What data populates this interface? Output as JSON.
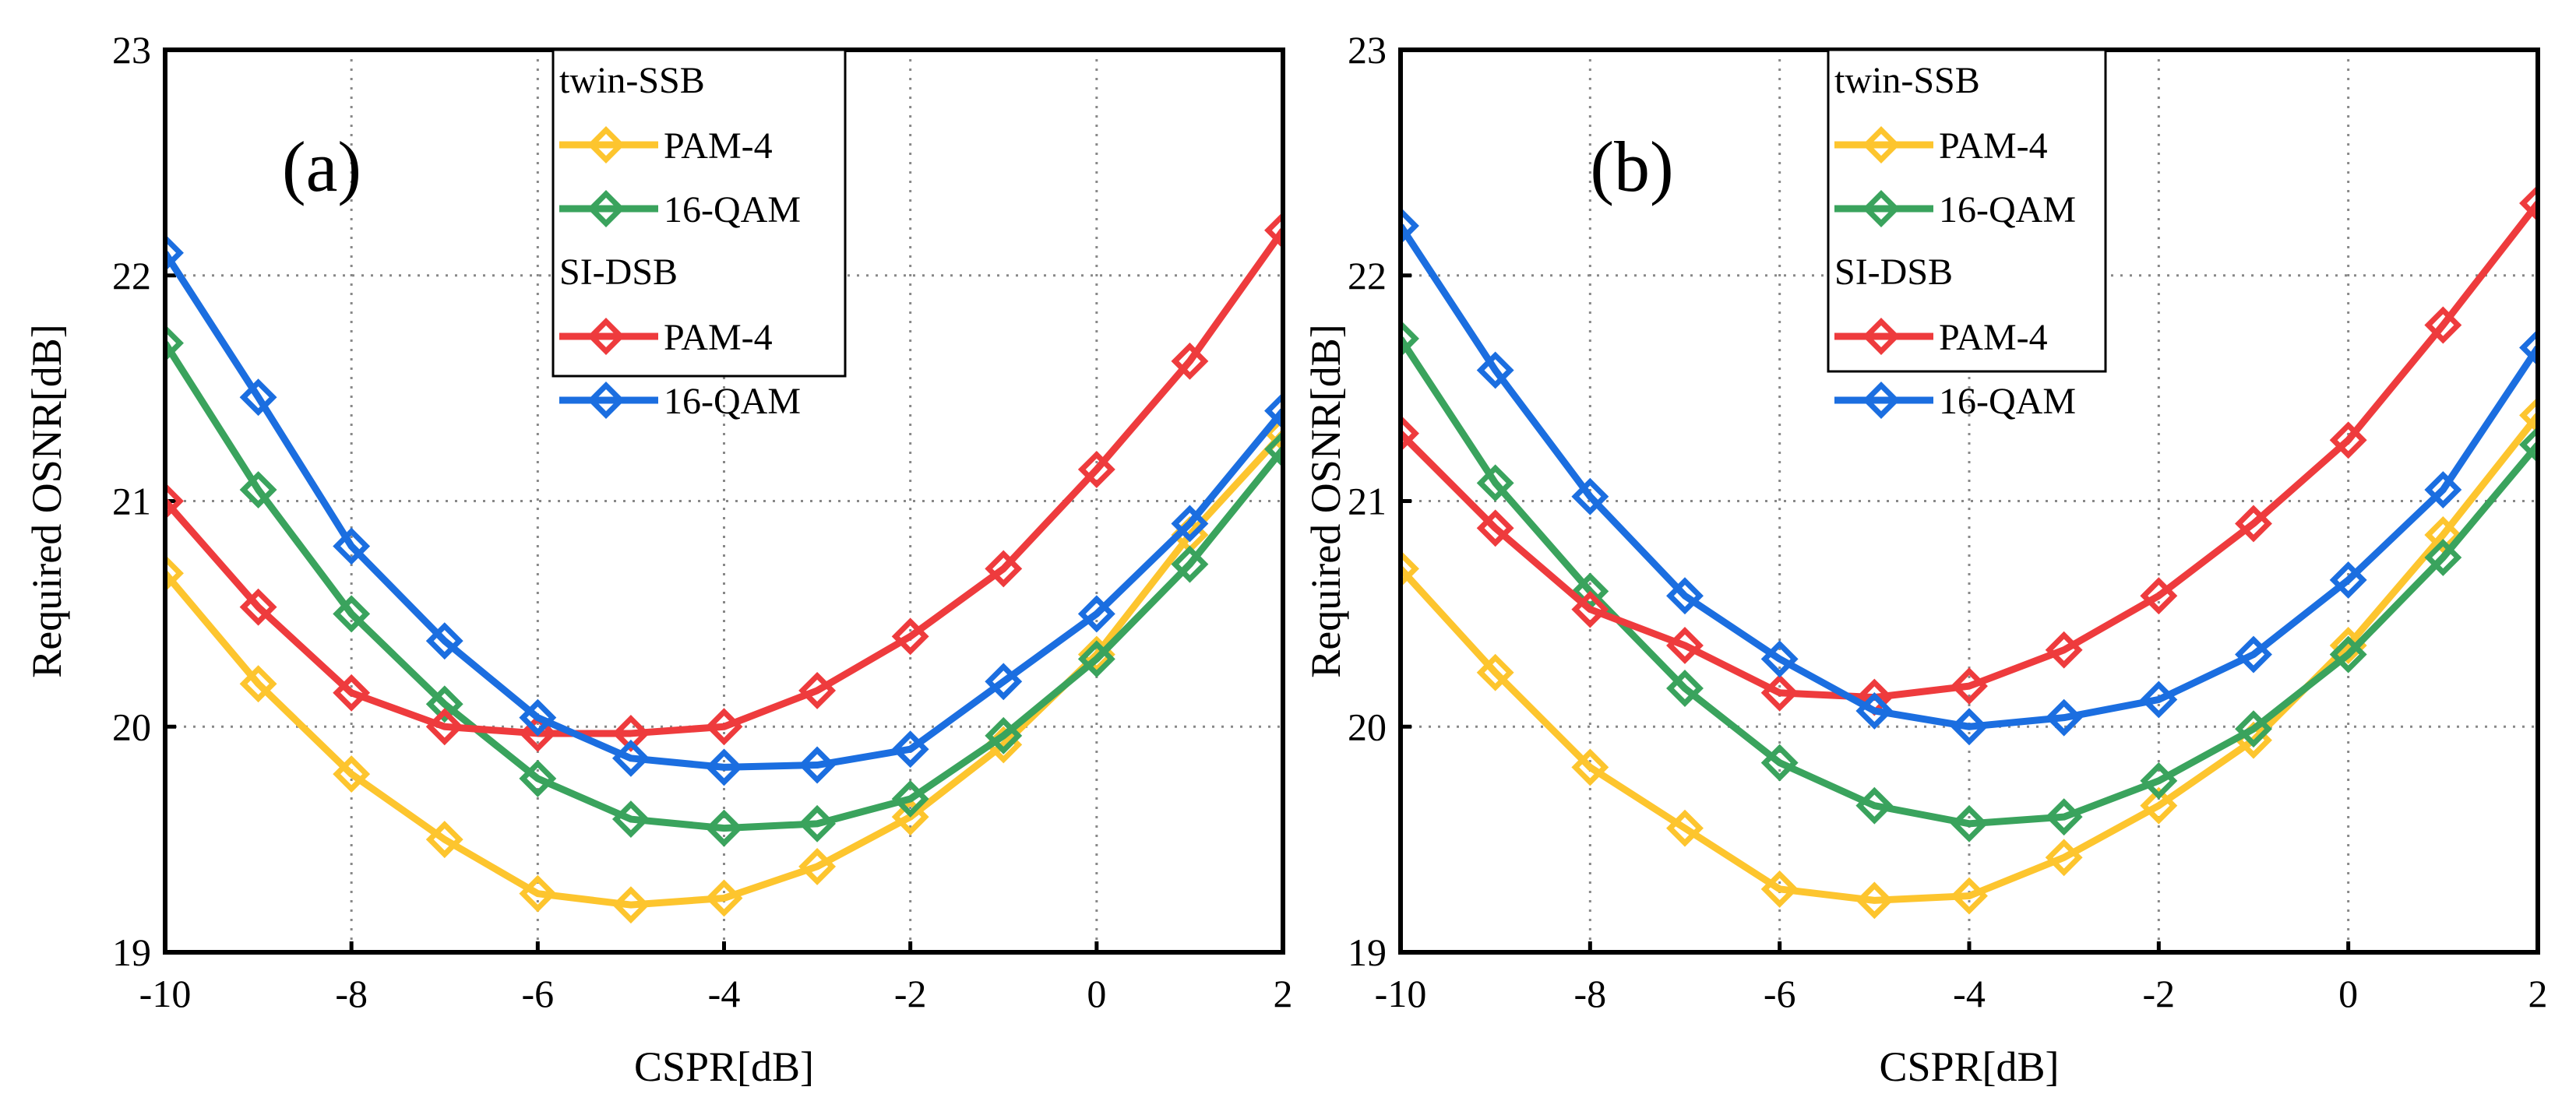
{
  "chart_data": [
    {
      "type": "line",
      "panel_label": "(a)",
      "xlabel": "CSPR[dB]",
      "ylabel": "Required OSNR[dB]",
      "xlim": [
        -10,
        2
      ],
      "ylim": [
        19,
        23
      ],
      "xticks": [
        -10,
        -8,
        -6,
        -4,
        -2,
        0,
        2
      ],
      "yticks": [
        19,
        20,
        21,
        22,
        23
      ],
      "grid": true,
      "legend_placement": "top-center",
      "legend_groups": [
        "twin-SSB",
        "SI-DSB"
      ],
      "x": [
        -10,
        -9,
        -8,
        -7,
        -6,
        -5,
        -4,
        -3,
        -2,
        -1,
        0,
        1,
        2
      ],
      "series": [
        {
          "group": "twin-SSB",
          "name": "PAM-4",
          "color": "#FDC52E",
          "values": [
            20.68,
            20.19,
            19.79,
            19.5,
            19.26,
            19.21,
            19.24,
            19.38,
            19.6,
            19.92,
            20.32,
            20.85,
            21.3
          ]
        },
        {
          "group": "twin-SSB",
          "name": "16-QAM",
          "color": "#3AA35D",
          "values": [
            21.7,
            21.05,
            20.5,
            20.1,
            19.77,
            19.59,
            19.55,
            19.57,
            19.68,
            19.96,
            20.3,
            20.72,
            21.23
          ]
        },
        {
          "group": "SI-DSB",
          "name": "PAM-4",
          "color": "#EE3B3D",
          "values": [
            21.0,
            20.53,
            20.15,
            20.0,
            19.97,
            19.97,
            20.0,
            20.16,
            20.4,
            20.7,
            21.14,
            21.62,
            22.2
          ]
        },
        {
          "group": "SI-DSB",
          "name": "16-QAM",
          "color": "#1B6EE0",
          "values": [
            22.1,
            21.46,
            20.8,
            20.38,
            20.04,
            19.86,
            19.82,
            19.83,
            19.9,
            20.2,
            20.5,
            20.9,
            21.4
          ]
        }
      ]
    },
    {
      "type": "line",
      "panel_label": "(b)",
      "xlabel": "CSPR[dB]",
      "ylabel": "Required OSNR[dB]",
      "xlim": [
        -10,
        2
      ],
      "ylim": [
        19,
        23
      ],
      "xticks": [
        -10,
        -8,
        -6,
        -4,
        -2,
        0,
        2
      ],
      "yticks": [
        19,
        20,
        21,
        22,
        23
      ],
      "grid": true,
      "legend_placement": "top-center",
      "legend_groups": [
        "twin-SSB",
        "SI-DSB"
      ],
      "x": [
        -10,
        -9,
        -8,
        -7,
        -6,
        -5,
        -4,
        -3,
        -2,
        -1,
        0,
        1,
        2
      ],
      "series": [
        {
          "group": "twin-SSB",
          "name": "PAM-4",
          "color": "#FDC52E",
          "values": [
            20.7,
            20.24,
            19.82,
            19.55,
            19.28,
            19.23,
            19.25,
            19.42,
            19.65,
            19.94,
            20.36,
            20.85,
            21.38
          ]
        },
        {
          "group": "twin-SSB",
          "name": "16-QAM",
          "color": "#3AA35D",
          "values": [
            21.72,
            21.08,
            20.6,
            20.17,
            19.84,
            19.65,
            19.57,
            19.6,
            19.76,
            19.99,
            20.32,
            20.75,
            21.25
          ]
        },
        {
          "group": "SI-DSB",
          "name": "PAM-4",
          "color": "#EE3B3D",
          "values": [
            21.3,
            20.88,
            20.52,
            20.36,
            20.15,
            20.13,
            20.18,
            20.34,
            20.58,
            20.9,
            21.27,
            21.78,
            22.32
          ]
        },
        {
          "group": "SI-DSB",
          "name": "16-QAM",
          "color": "#1B6EE0",
          "values": [
            22.22,
            21.58,
            21.02,
            20.58,
            20.3,
            20.07,
            20.0,
            20.04,
            20.12,
            20.32,
            20.65,
            21.05,
            21.68
          ]
        }
      ]
    }
  ]
}
